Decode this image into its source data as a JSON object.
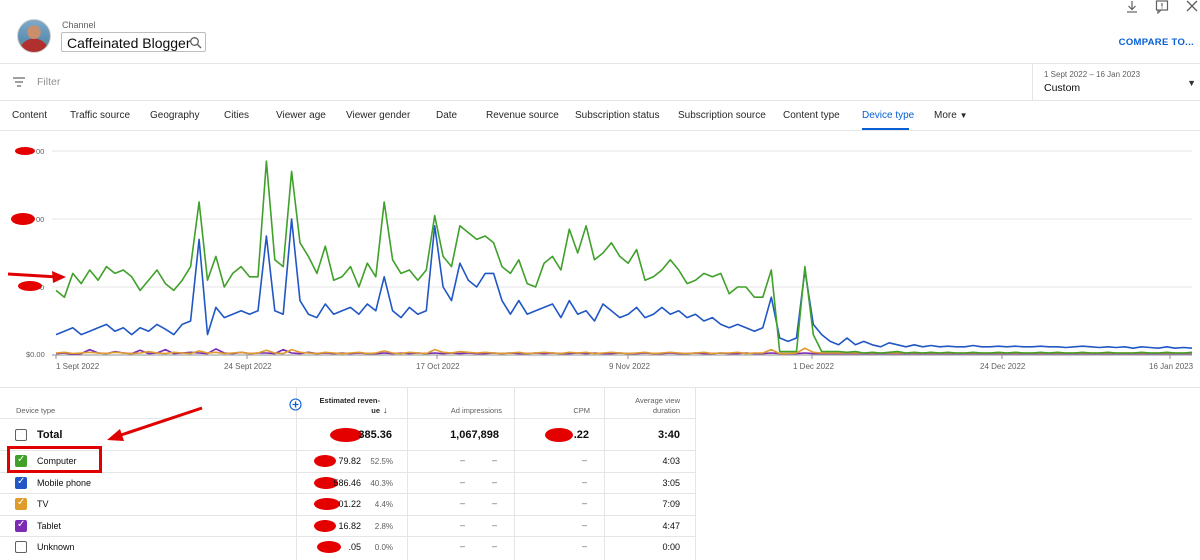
{
  "header": {
    "channel_label": "Channel",
    "channel_name": "Caffeinated Blogger",
    "compare_label": "COMPARE TO..."
  },
  "filter": {
    "placeholder": "Filter",
    "date_range": "1 Sept 2022 – 16 Jan 2023",
    "date_label": "Custom"
  },
  "tabs": [
    {
      "label": "Content",
      "active": false
    },
    {
      "label": "Traffic source",
      "active": false
    },
    {
      "label": "Geography",
      "active": false
    },
    {
      "label": "Cities",
      "active": false
    },
    {
      "label": "Viewer age",
      "active": false
    },
    {
      "label": "Viewer gender",
      "active": false
    },
    {
      "label": "Date",
      "active": false
    },
    {
      "label": "Revenue source",
      "active": false
    },
    {
      "label": "Subscription status",
      "active": false
    },
    {
      "label": "Subscription source",
      "active": false
    },
    {
      "label": "Content type",
      "active": false
    },
    {
      "label": "Device type",
      "active": true
    },
    {
      "label": "More",
      "active": false
    }
  ],
  "chart_data": {
    "type": "line",
    "y_tick_labels": [
      "00",
      "00",
      "0",
      "$0.00"
    ],
    "x_tick_labels": [
      "1 Sept 2022",
      "24 Sept 2022",
      "17 Oct 2022",
      "9 Nov 2022",
      "1 Dec 2022",
      "24 Dec 2022",
      "16 Jan 2023"
    ],
    "ylim": [
      0,
      300
    ],
    "grid": true,
    "series": [
      {
        "name": "Computer",
        "color": "#3fa02a",
        "values": [
          95,
          85,
          120,
          105,
          125,
          110,
          130,
          120,
          125,
          115,
          95,
          110,
          125,
          105,
          95,
          110,
          130,
          225,
          110,
          145,
          100,
          120,
          130,
          115,
          115,
          285,
          140,
          130,
          270,
          165,
          145,
          120,
          160,
          110,
          115,
          130,
          100,
          135,
          115,
          225,
          140,
          120,
          125,
          110,
          125,
          205,
          145,
          130,
          190,
          180,
          170,
          175,
          165,
          130,
          120,
          140,
          105,
          100,
          135,
          145,
          125,
          185,
          150,
          190,
          140,
          150,
          165,
          145,
          135,
          155,
          110,
          115,
          125,
          140,
          125,
          105,
          110,
          120,
          115,
          120,
          90,
          100,
          100,
          85,
          85,
          125,
          5,
          5,
          5,
          130,
          30,
          5,
          5,
          5,
          4,
          5,
          3,
          4,
          3,
          4,
          5,
          3,
          4,
          3,
          4,
          3,
          4,
          3,
          3,
          4,
          3,
          3,
          4,
          3,
          4,
          3,
          3,
          4,
          3,
          4,
          3,
          3,
          4,
          3,
          3,
          4,
          3,
          3,
          3,
          4,
          3,
          3,
          4,
          3,
          3,
          4
        ]
      },
      {
        "name": "Mobile phone",
        "color": "#2057c4",
        "values": [
          30,
          35,
          40,
          30,
          35,
          40,
          45,
          35,
          40,
          30,
          40,
          35,
          45,
          38,
          30,
          45,
          50,
          170,
          30,
          70,
          55,
          60,
          65,
          60,
          65,
          175,
          65,
          60,
          200,
          80,
          60,
          55,
          75,
          60,
          65,
          70,
          60,
          75,
          65,
          115,
          65,
          55,
          70,
          60,
          65,
          190,
          100,
          80,
          135,
          110,
          100,
          120,
          120,
          80,
          60,
          80,
          60,
          65,
          70,
          75,
          55,
          80,
          60,
          65,
          50,
          75,
          65,
          55,
          60,
          70,
          55,
          60,
          70,
          60,
          65,
          55,
          60,
          50,
          55,
          45,
          40,
          45,
          40,
          35,
          40,
          85,
          25,
          20,
          25,
          125,
          45,
          30,
          20,
          15,
          25,
          15,
          20,
          15,
          12,
          18,
          15,
          12,
          15,
          12,
          14,
          12,
          13,
          12,
          12,
          14,
          12,
          12,
          13,
          12,
          13,
          12,
          12,
          13,
          12,
          12,
          11,
          12,
          13,
          12,
          11,
          12,
          11,
          12,
          10,
          12,
          11,
          10,
          12,
          10,
          11,
          10
        ]
      },
      {
        "name": "TV",
        "color": "#e09b2d",
        "values": [
          3,
          4,
          2,
          3,
          4,
          3,
          2,
          4,
          3,
          2,
          3,
          5,
          3,
          2,
          4,
          3,
          2,
          6,
          3,
          4,
          2,
          3,
          4,
          2,
          3,
          7,
          3,
          2,
          8,
          4,
          3,
          2,
          4,
          3,
          2,
          3,
          4,
          2,
          3,
          6,
          3,
          2,
          4,
          3,
          2,
          8,
          4,
          3,
          5,
          4,
          3,
          4,
          3,
          2,
          3,
          4,
          2,
          3,
          4,
          3,
          2,
          4,
          3,
          4,
          2,
          3,
          4,
          3,
          2,
          3,
          4,
          2,
          3,
          4,
          3,
          2,
          3,
          4,
          2,
          3,
          3,
          4,
          2,
          3,
          3,
          8,
          2,
          2,
          3,
          10,
          4,
          3,
          3,
          3,
          3,
          3,
          3,
          3,
          3,
          3,
          3,
          3,
          3,
          3,
          3,
          3,
          3,
          3,
          3,
          3,
          3,
          3,
          3,
          3,
          3,
          3,
          3,
          3,
          3,
          3,
          3,
          3,
          3,
          3,
          3,
          3,
          3,
          3,
          3,
          3,
          3,
          3,
          3,
          3,
          3,
          3
        ]
      },
      {
        "name": "Tablet",
        "color": "#7c2bb4",
        "values": [
          2,
          3,
          1,
          2,
          8,
          3,
          2,
          5,
          3,
          2,
          7,
          2,
          3,
          8,
          2,
          3,
          4,
          3,
          2,
          9,
          3,
          2,
          4,
          2,
          3,
          3,
          2,
          8,
          3,
          2,
          4,
          2,
          3,
          2,
          3,
          2,
          3,
          2,
          2,
          3,
          2,
          3,
          2,
          3,
          2,
          3,
          2,
          3,
          2,
          3,
          2,
          2,
          3,
          2,
          3,
          2,
          2,
          3,
          2,
          3,
          2,
          2,
          3,
          2,
          3,
          2,
          2,
          3,
          2,
          2,
          3,
          2,
          2,
          3,
          2,
          2,
          3,
          2,
          2,
          3,
          2,
          2,
          3,
          2,
          2,
          3,
          2,
          2,
          2,
          3,
          2,
          2,
          2,
          2,
          2,
          2,
          2,
          2,
          2,
          2,
          2,
          2,
          2,
          2,
          2,
          2,
          2,
          2,
          2,
          2,
          2,
          2,
          2,
          2,
          2,
          2,
          2,
          2,
          2,
          2,
          2,
          2,
          2,
          2,
          2,
          2,
          2,
          2,
          2,
          2,
          2,
          2,
          2,
          2,
          2,
          2
        ]
      }
    ]
  },
  "table": {
    "headers": {
      "device_type": "Device type",
      "revenue_line1": "Estimated reven-",
      "revenue_line2": "ue",
      "ad_impressions": "Ad impressions",
      "cpm": "CPM",
      "avg_line1": "Average view",
      "avg_line2": "duration"
    },
    "total": {
      "label": "Total",
      "revenue": "385.36",
      "impressions": "1,067,898",
      "cpm": ".22",
      "avg": "3:40"
    },
    "rows": [
      {
        "label": "Computer",
        "color": "#3fa02a",
        "checked": true,
        "revenue": "79.82",
        "pct": "52.5%",
        "avg": "4:03"
      },
      {
        "label": "Mobile phone",
        "color": "#2057c4",
        "checked": true,
        "revenue": "586.46",
        "pct": "40.3%",
        "avg": "3:05"
      },
      {
        "label": "TV",
        "color": "#e09b2d",
        "checked": true,
        "revenue": "01.22",
        "pct": "4.4%",
        "avg": "7:09"
      },
      {
        "label": "Tablet",
        "color": "#7c2bb4",
        "checked": true,
        "revenue": "16.82",
        "pct": "2.8%",
        "avg": "4:47"
      },
      {
        "label": "Unknown",
        "color": "#ffffff",
        "checked": false,
        "revenue": ".05",
        "pct": "0.0%",
        "avg": "0:00"
      }
    ],
    "dash": "–"
  }
}
